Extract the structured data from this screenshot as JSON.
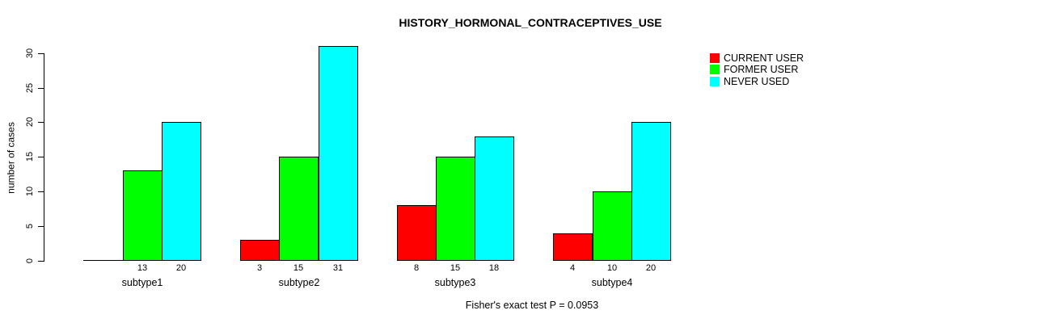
{
  "title": "HISTORY_HORMONAL_CONTRACEPTIVES_USE",
  "annotation": "Fisher's exact test P = 0.0953",
  "legend": {
    "position": "top-right",
    "entries": [
      {
        "label": "CURRENT USER",
        "color": "#ff0000"
      },
      {
        "label": "FORMER USER",
        "color": "#00ff00"
      },
      {
        "label": "NEVER USED",
        "color": "#00ffff"
      }
    ]
  },
  "chart_data": {
    "type": "bar",
    "grouped": true,
    "title": "HISTORY_HORMONAL_CONTRACEPTIVES_USE",
    "xlabel": "",
    "ylabel": "number of cases",
    "categories": [
      "subtype1",
      "subtype2",
      "subtype3",
      "subtype4"
    ],
    "series": [
      {
        "name": "CURRENT USER",
        "color": "#ff0000",
        "values": [
          0,
          3,
          8,
          4
        ],
        "bar_labels": [
          "",
          "3",
          "8",
          "4"
        ]
      },
      {
        "name": "FORMER USER",
        "color": "#00ff00",
        "values": [
          13,
          15,
          15,
          10
        ],
        "bar_labels": [
          "13",
          "15",
          "15",
          "10"
        ]
      },
      {
        "name": "NEVER USED",
        "color": "#00ffff",
        "values": [
          20,
          31,
          18,
          20
        ],
        "bar_labels": [
          "20",
          "31",
          "18",
          "20"
        ]
      }
    ],
    "y_axis": {
      "ticks": [
        0,
        5,
        10,
        15,
        20,
        25,
        30
      ],
      "ylim": [
        0,
        31
      ]
    },
    "grid": false,
    "legend_position": "top-right",
    "footnote": "Fisher's exact test P = 0.0953"
  }
}
